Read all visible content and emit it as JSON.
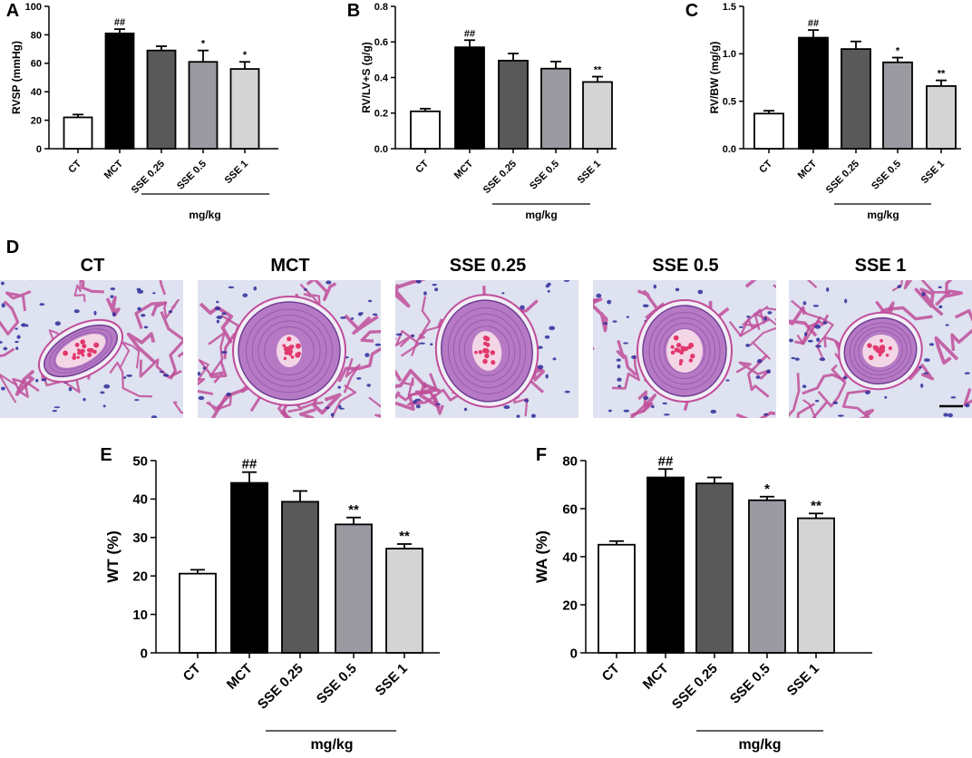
{
  "chart_data": [
    {
      "panel": "A",
      "type": "bar",
      "categories": [
        "CT",
        "MCT",
        "SSE 0.25",
        "SSE 0.5",
        "SSE 1"
      ],
      "values": [
        22,
        81,
        69,
        61,
        56
      ],
      "errors": [
        2,
        3,
        3,
        8,
        5
      ],
      "significance": [
        "",
        "##",
        "",
        "*",
        "*"
      ],
      "colors": [
        "#ffffff",
        "#000000",
        "#595959",
        "#9a9aa0",
        "#d4d4d4"
      ],
      "ylabel": "RVSP (mmHg)",
      "ylim": [
        0,
        100
      ],
      "yticks": [
        "0",
        "20",
        "40",
        "60",
        "80",
        "100"
      ],
      "group_label": "mg/kg"
    },
    {
      "panel": "B",
      "type": "bar",
      "categories": [
        "CT",
        "MCT",
        "SSE 0.25",
        "SSE 0.5",
        "SSE 1"
      ],
      "values": [
        0.21,
        0.57,
        0.495,
        0.45,
        0.375
      ],
      "errors": [
        0.015,
        0.04,
        0.04,
        0.04,
        0.03
      ],
      "significance": [
        "",
        "##",
        "",
        "",
        "**"
      ],
      "colors": [
        "#ffffff",
        "#000000",
        "#595959",
        "#9a9aa0",
        "#d4d4d4"
      ],
      "ylabel": "RV/LV+S (g/g)",
      "ylim": [
        0,
        0.8
      ],
      "yticks": [
        "0.0",
        "0.2",
        "0.4",
        "0.6",
        "0.8"
      ],
      "group_label": "mg/kg"
    },
    {
      "panel": "C",
      "type": "bar",
      "categories": [
        "CT",
        "MCT",
        "SSE 0.25",
        "SSE 0.5",
        "SSE 1"
      ],
      "values": [
        0.37,
        1.17,
        1.05,
        0.91,
        0.66
      ],
      "errors": [
        0.03,
        0.08,
        0.08,
        0.05,
        0.06
      ],
      "significance": [
        "",
        "##",
        "",
        "*",
        "**"
      ],
      "colors": [
        "#ffffff",
        "#000000",
        "#595959",
        "#9a9aa0",
        "#d4d4d4"
      ],
      "ylabel": "RV/BW (mg/g)",
      "ylim": [
        0,
        1.5
      ],
      "yticks": [
        "0.0",
        "0.5",
        "1.0",
        "1.5"
      ],
      "group_label": "mg/kg"
    },
    {
      "panel": "E",
      "type": "bar",
      "categories": [
        "CT",
        "MCT",
        "SSE 0.25",
        "SSE 0.5",
        "SSE 1"
      ],
      "values": [
        20.6,
        44.2,
        39.3,
        33.4,
        27.1
      ],
      "errors": [
        1.0,
        2.8,
        2.8,
        1.8,
        1.2
      ],
      "significance": [
        "",
        "##",
        "",
        "**",
        "**"
      ],
      "colors": [
        "#ffffff",
        "#000000",
        "#595959",
        "#9a9aa0",
        "#d4d4d4"
      ],
      "ylabel": "WT (%)",
      "ylim": [
        0,
        50
      ],
      "yticks": [
        "0",
        "10",
        "20",
        "30",
        "40",
        "50"
      ],
      "group_label": "mg/kg"
    },
    {
      "panel": "F",
      "type": "bar",
      "categories": [
        "CT",
        "MCT",
        "SSE 0.25",
        "SSE 0.5",
        "SSE 1"
      ],
      "values": [
        45,
        73,
        70.5,
        63.5,
        56
      ],
      "errors": [
        1.5,
        3.5,
        2.5,
        1.5,
        2
      ],
      "significance": [
        "",
        "##",
        "",
        "*",
        "**"
      ],
      "colors": [
        "#ffffff",
        "#000000",
        "#595959",
        "#9a9aa0",
        "#d4d4d4"
      ],
      "ylabel": "WA (%)",
      "ylim": [
        0,
        80
      ],
      "yticks": [
        "0",
        "20",
        "40",
        "60",
        "80"
      ],
      "group_label": "mg/kg"
    }
  ],
  "histology": {
    "panel": "D",
    "titles": [
      "CT",
      "MCT",
      "SSE 0.25",
      "SSE 0.5",
      "SSE 1"
    ]
  },
  "colors": {
    "tissue_background": "#dfe2f0",
    "alveolar_wall": "#c04d9a",
    "vessel_wall": "#b67ac4",
    "blood_cells": "#e2386c",
    "nuclei": "#2b2d9a"
  }
}
